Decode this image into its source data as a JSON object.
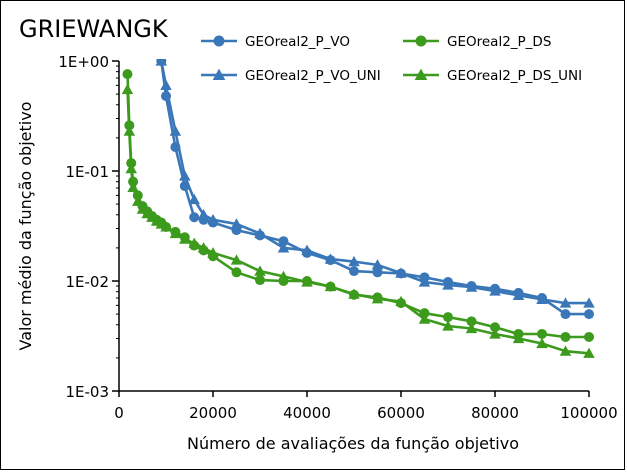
{
  "chart_data": {
    "type": "line",
    "title": "GRIEWANGK",
    "xlabel": "Número de avaliações da função objetivo",
    "ylabel": "Valor médio da função objetivo",
    "xlim": [
      0,
      100000
    ],
    "ylim": [
      0.001,
      1
    ],
    "y_scale": "log",
    "x_ticks": [
      0,
      20000,
      40000,
      60000,
      80000,
      100000
    ],
    "x_tick_labels": [
      "0",
      "20000",
      "40000",
      "60000",
      "80000",
      "100000"
    ],
    "y_ticks": [
      0.001,
      0.01,
      0.1,
      1
    ],
    "y_tick_labels": [
      "1E-03",
      "1E-02",
      "1E-01",
      "1E+00"
    ],
    "grid": false,
    "legend_position": "top-right",
    "series": [
      {
        "name": "GEOreal2_P_VO",
        "color": "#3a77b8",
        "marker": "circle",
        "x": [
          9000,
          10000,
          12000,
          14000,
          16000,
          18000,
          20000,
          25000,
          30000,
          35000,
          40000,
          45000,
          50000,
          55000,
          60000,
          65000,
          70000,
          75000,
          80000,
          85000,
          90000,
          95000,
          100000
        ],
        "y": [
          1.0,
          0.48,
          0.165,
          0.073,
          0.038,
          0.036,
          0.034,
          0.029,
          0.026,
          0.023,
          0.018,
          0.0155,
          0.0123,
          0.012,
          0.0117,
          0.0108,
          0.0098,
          0.009,
          0.0085,
          0.0078,
          0.007,
          0.005,
          0.005
        ]
      },
      {
        "name": "GEOreal2_P_DS",
        "color": "#3c9a1c",
        "marker": "circle",
        "x": [
          1800,
          2200,
          2600,
          3000,
          4000,
          5000,
          6000,
          7000,
          8000,
          9000,
          10000,
          12000,
          14000,
          16000,
          18000,
          20000,
          25000,
          30000,
          35000,
          40000,
          45000,
          50000,
          55000,
          60000,
          65000,
          70000,
          75000,
          80000,
          85000,
          90000,
          95000,
          100000
        ],
        "y": [
          0.76,
          0.26,
          0.118,
          0.08,
          0.06,
          0.048,
          0.043,
          0.039,
          0.036,
          0.034,
          0.031,
          0.028,
          0.025,
          0.021,
          0.019,
          0.0168,
          0.012,
          0.0102,
          0.01,
          0.01,
          0.0089,
          0.0075,
          0.0071,
          0.0063,
          0.0051,
          0.0047,
          0.0043,
          0.0038,
          0.0033,
          0.0033,
          0.0031,
          0.0031
        ]
      },
      {
        "name": "GEOreal2_P_VO_UNI",
        "color": "#3a77b8",
        "marker": "triangle",
        "x": [
          9000,
          10000,
          12000,
          14000,
          16000,
          18000,
          20000,
          25000,
          30000,
          35000,
          40000,
          45000,
          50000,
          55000,
          60000,
          65000,
          70000,
          75000,
          80000,
          85000,
          90000,
          95000,
          100000
        ],
        "y": [
          1.0,
          0.6,
          0.23,
          0.09,
          0.055,
          0.04,
          0.036,
          0.033,
          0.027,
          0.02,
          0.019,
          0.0158,
          0.015,
          0.014,
          0.0118,
          0.0098,
          0.0092,
          0.0088,
          0.0081,
          0.0074,
          0.0068,
          0.0063,
          0.0063
        ]
      },
      {
        "name": "GEOreal2_P_DS_UNI",
        "color": "#3c9a1c",
        "marker": "triangle",
        "x": [
          1800,
          2200,
          2600,
          3000,
          4000,
          5000,
          6000,
          7000,
          8000,
          9000,
          10000,
          12000,
          14000,
          16000,
          18000,
          20000,
          25000,
          30000,
          35000,
          40000,
          45000,
          50000,
          55000,
          60000,
          65000,
          70000,
          75000,
          80000,
          85000,
          90000,
          95000,
          100000
        ],
        "y": [
          0.55,
          0.23,
          0.105,
          0.071,
          0.053,
          0.045,
          0.041,
          0.038,
          0.035,
          0.033,
          0.031,
          0.027,
          0.024,
          0.022,
          0.02,
          0.018,
          0.0155,
          0.0123,
          0.011,
          0.0098,
          0.0089,
          0.0076,
          0.0069,
          0.0065,
          0.0045,
          0.0039,
          0.0037,
          0.0033,
          0.003,
          0.0027,
          0.0023,
          0.0022
        ]
      }
    ]
  }
}
